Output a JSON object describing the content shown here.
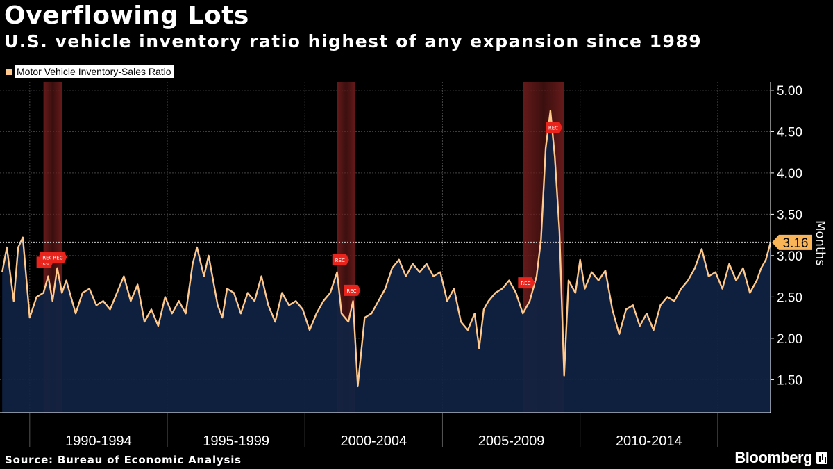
{
  "header": {
    "title": "Overflowing Lots",
    "subtitle": "U.S. vehicle inventory ratio highest of any expansion since 1989"
  },
  "legend": {
    "label": "Motor Vehicle Inventory-Sales Ratio",
    "color": "#ffc88c"
  },
  "footer": {
    "source": "Source: Bureau of Economic Analysis",
    "brand": "Bloomberg"
  },
  "chart_data": {
    "type": "area",
    "title": "Overflowing Lots",
    "subtitle": "U.S. vehicle inventory ratio highest of any expansion since 1989",
    "ylabel": "Months",
    "ylim": [
      1.1,
      5.1
    ],
    "xlim": [
      1988.92,
      2016.92
    ],
    "y_ticks": [
      "5.00",
      "4.50",
      "4.00",
      "3.50",
      "3.00",
      "2.50",
      "2.00",
      "1.50"
    ],
    "x_ticks": [
      "1990-1994",
      "1995-1999",
      "2000-2004",
      "2005-2009",
      "2010-2014"
    ],
    "grid": true,
    "last_value_label": "3.16",
    "recession_marker_label": "REC",
    "colors": {
      "line": "#ffc88c",
      "area": "#0f2343",
      "recession": "#6b1b1b",
      "marker": "#e8241c"
    },
    "recessions": [
      {
        "start": 1990.5,
        "end": 1991.17
      },
      {
        "start": 2001.17,
        "end": 2001.83
      },
      {
        "start": 2007.92,
        "end": 2009.42
      }
    ],
    "series": [
      {
        "points": [
          [
            1989.0,
            2.8
          ],
          [
            1989.17,
            3.1
          ],
          [
            1989.42,
            2.45
          ],
          [
            1989.58,
            3.1
          ],
          [
            1989.75,
            3.22
          ],
          [
            1990.0,
            2.25
          ],
          [
            1990.25,
            2.5
          ],
          [
            1990.5,
            2.55
          ],
          [
            1990.67,
            2.75
          ],
          [
            1990.83,
            2.45
          ],
          [
            1991.0,
            2.85
          ],
          [
            1991.17,
            2.55
          ],
          [
            1991.33,
            2.7
          ],
          [
            1991.67,
            2.3
          ],
          [
            1991.92,
            2.55
          ],
          [
            1992.17,
            2.6
          ],
          [
            1992.42,
            2.4
          ],
          [
            1992.67,
            2.45
          ],
          [
            1992.92,
            2.35
          ],
          [
            1993.17,
            2.55
          ],
          [
            1993.42,
            2.75
          ],
          [
            1993.67,
            2.45
          ],
          [
            1993.92,
            2.65
          ],
          [
            1994.17,
            2.2
          ],
          [
            1994.42,
            2.35
          ],
          [
            1994.67,
            2.15
          ],
          [
            1994.92,
            2.5
          ],
          [
            1995.17,
            2.3
          ],
          [
            1995.42,
            2.45
          ],
          [
            1995.67,
            2.3
          ],
          [
            1995.92,
            2.9
          ],
          [
            1996.08,
            3.1
          ],
          [
            1996.33,
            2.75
          ],
          [
            1996.5,
            3.0
          ],
          [
            1996.83,
            2.4
          ],
          [
            1997.0,
            2.25
          ],
          [
            1997.17,
            2.6
          ],
          [
            1997.42,
            2.55
          ],
          [
            1997.67,
            2.3
          ],
          [
            1997.92,
            2.55
          ],
          [
            1998.17,
            2.45
          ],
          [
            1998.42,
            2.75
          ],
          [
            1998.67,
            2.4
          ],
          [
            1998.92,
            2.2
          ],
          [
            1999.17,
            2.55
          ],
          [
            1999.42,
            2.4
          ],
          [
            1999.67,
            2.45
          ],
          [
            1999.92,
            2.35
          ],
          [
            2000.17,
            2.1
          ],
          [
            2000.42,
            2.3
          ],
          [
            2000.67,
            2.45
          ],
          [
            2000.92,
            2.55
          ],
          [
            2001.17,
            2.8
          ],
          [
            2001.33,
            2.3
          ],
          [
            2001.58,
            2.2
          ],
          [
            2001.75,
            2.45
          ],
          [
            2001.92,
            1.42
          ],
          [
            2002.17,
            2.25
          ],
          [
            2002.42,
            2.3
          ],
          [
            2002.67,
            2.45
          ],
          [
            2002.92,
            2.6
          ],
          [
            2003.17,
            2.85
          ],
          [
            2003.42,
            2.95
          ],
          [
            2003.67,
            2.75
          ],
          [
            2003.92,
            2.9
          ],
          [
            2004.17,
            2.8
          ],
          [
            2004.42,
            2.9
          ],
          [
            2004.67,
            2.75
          ],
          [
            2004.92,
            2.8
          ],
          [
            2005.17,
            2.45
          ],
          [
            2005.42,
            2.6
          ],
          [
            2005.67,
            2.2
          ],
          [
            2005.92,
            2.1
          ],
          [
            2006.17,
            2.3
          ],
          [
            2006.33,
            1.88
          ],
          [
            2006.5,
            2.35
          ],
          [
            2006.67,
            2.45
          ],
          [
            2006.92,
            2.55
          ],
          [
            2007.17,
            2.6
          ],
          [
            2007.42,
            2.7
          ],
          [
            2007.67,
            2.55
          ],
          [
            2007.92,
            2.3
          ],
          [
            2008.17,
            2.45
          ],
          [
            2008.42,
            2.75
          ],
          [
            2008.58,
            3.2
          ],
          [
            2008.75,
            4.3
          ],
          [
            2008.92,
            4.75
          ],
          [
            2009.08,
            4.2
          ],
          [
            2009.25,
            3.3
          ],
          [
            2009.42,
            1.55
          ],
          [
            2009.58,
            2.7
          ],
          [
            2009.83,
            2.55
          ],
          [
            2010.0,
            2.95
          ],
          [
            2010.17,
            2.6
          ],
          [
            2010.42,
            2.8
          ],
          [
            2010.67,
            2.7
          ],
          [
            2010.92,
            2.82
          ],
          [
            2011.17,
            2.35
          ],
          [
            2011.42,
            2.05
          ],
          [
            2011.67,
            2.35
          ],
          [
            2011.92,
            2.4
          ],
          [
            2012.17,
            2.15
          ],
          [
            2012.42,
            2.3
          ],
          [
            2012.67,
            2.1
          ],
          [
            2012.92,
            2.4
          ],
          [
            2013.17,
            2.5
          ],
          [
            2013.42,
            2.45
          ],
          [
            2013.67,
            2.6
          ],
          [
            2013.92,
            2.7
          ],
          [
            2014.17,
            2.85
          ],
          [
            2014.42,
            3.08
          ],
          [
            2014.67,
            2.75
          ],
          [
            2014.92,
            2.8
          ],
          [
            2015.17,
            2.6
          ],
          [
            2015.42,
            2.9
          ],
          [
            2015.67,
            2.7
          ],
          [
            2015.92,
            2.85
          ],
          [
            2016.17,
            2.55
          ],
          [
            2016.42,
            2.7
          ],
          [
            2016.58,
            2.85
          ],
          [
            2016.75,
            2.95
          ],
          [
            2016.92,
            3.16
          ]
        ]
      }
    ]
  }
}
